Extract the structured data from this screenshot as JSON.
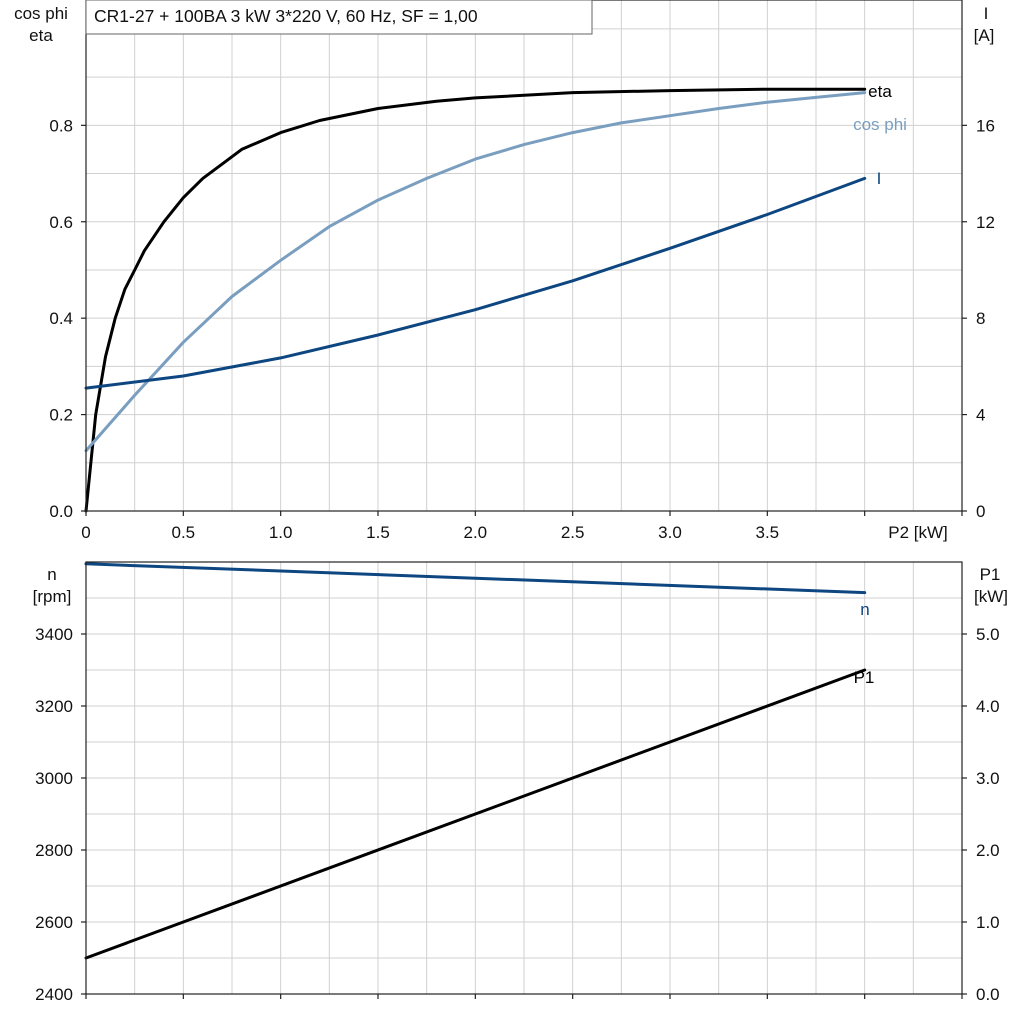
{
  "colors": {
    "eta": "#000000",
    "cos_phi": "#7a9ebf",
    "current": "#0d4680",
    "speed": "#0d4680",
    "p1": "#000000"
  },
  "chart_data": [
    {
      "type": "line",
      "title": "CR1-27 + 100BA   3 kW   3*220 V, 60 Hz, SF = 1,00",
      "xlabel": "P2 [kW]",
      "ylabel_left": [
        "cos phi",
        "eta"
      ],
      "ylabel_right": [
        "I",
        "[A]"
      ],
      "xlim": [
        0,
        4.5
      ],
      "ylim_left": [
        0,
        1.06
      ],
      "ylim_right": [
        0,
        21.2
      ],
      "x_ticks": [
        "0",
        "0.5",
        "1.0",
        "1.5",
        "2.0",
        "2.5",
        "3.0",
        "3.5"
      ],
      "y_left_ticks": [
        "0.0",
        "0.2",
        "0.4",
        "0.6",
        "0.8"
      ],
      "y_right_ticks": [
        "0",
        "4",
        "8",
        "12",
        "16"
      ],
      "grid": true,
      "series": [
        {
          "name": "eta",
          "axis": "left",
          "color_key": "eta",
          "x": [
            0,
            0.05,
            0.1,
            0.15,
            0.2,
            0.25,
            0.3,
            0.4,
            0.5,
            0.6,
            0.7,
            0.8,
            1.0,
            1.2,
            1.5,
            1.8,
            2.0,
            2.5,
            3.0,
            3.5,
            4.0
          ],
          "y": [
            0,
            0.2,
            0.32,
            0.4,
            0.46,
            0.5,
            0.54,
            0.6,
            0.65,
            0.69,
            0.72,
            0.75,
            0.785,
            0.81,
            0.835,
            0.85,
            0.857,
            0.868,
            0.872,
            0.875,
            0.875
          ]
        },
        {
          "name": "cos phi",
          "axis": "left",
          "color_key": "cos_phi",
          "x": [
            0,
            0.25,
            0.5,
            0.75,
            1.0,
            1.25,
            1.5,
            1.75,
            2.0,
            2.25,
            2.5,
            2.75,
            3.0,
            3.25,
            3.5,
            3.75,
            4.0
          ],
          "y": [
            0.125,
            0.24,
            0.35,
            0.445,
            0.52,
            0.59,
            0.645,
            0.69,
            0.73,
            0.76,
            0.785,
            0.805,
            0.82,
            0.835,
            0.848,
            0.858,
            0.868
          ]
        },
        {
          "name": "I",
          "axis": "right",
          "color_key": "current",
          "x": [
            0,
            0.5,
            1.0,
            1.5,
            2.0,
            2.5,
            3.0,
            3.5,
            4.0
          ],
          "y": [
            5.1,
            5.6,
            6.35,
            7.3,
            8.35,
            9.55,
            10.9,
            12.3,
            13.8
          ]
        }
      ]
    },
    {
      "type": "line",
      "ylabel_left": [
        "n",
        "[rpm]"
      ],
      "ylabel_right": [
        "P1",
        "[kW]"
      ],
      "xlim": [
        0,
        4.5
      ],
      "ylim_left": [
        2400,
        3600
      ],
      "ylim_right": [
        0,
        6.0
      ],
      "y_left_ticks": [
        "2400",
        "2600",
        "2800",
        "3000",
        "3200",
        "3400"
      ],
      "y_right_ticks": [
        "0.0",
        "1.0",
        "2.0",
        "3.0",
        "4.0",
        "5.0"
      ],
      "grid": true,
      "series": [
        {
          "name": "n",
          "axis": "left",
          "color_key": "speed",
          "x": [
            0,
            4.0
          ],
          "y": [
            3595,
            3515
          ]
        },
        {
          "name": "P1",
          "axis": "right",
          "color_key": "p1",
          "x": [
            0,
            4.0
          ],
          "y": [
            0.5,
            4.5
          ]
        }
      ]
    }
  ]
}
